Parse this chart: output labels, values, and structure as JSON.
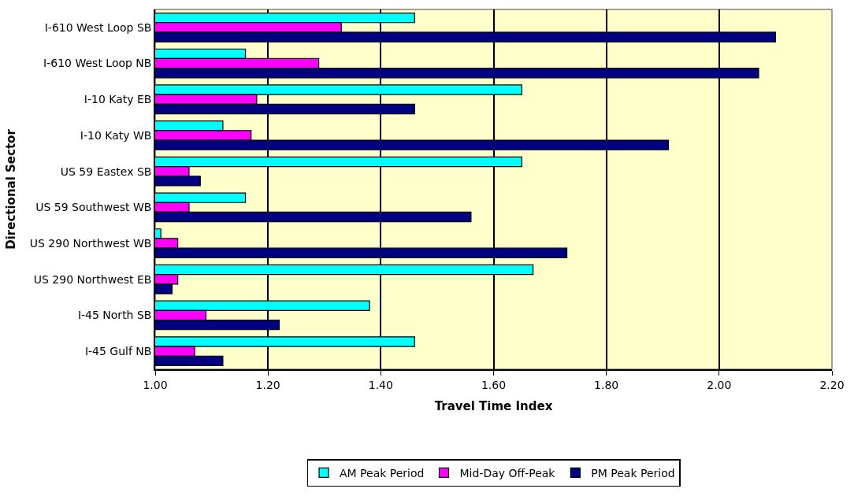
{
  "chart_data": {
    "type": "bar",
    "orientation": "horizontal",
    "xlabel": "Travel Time Index",
    "ylabel": "Directional Sector",
    "categories": [
      "I-610 West Loop SB",
      "I-610 West Loop NB",
      "I-10 Katy EB",
      "I-10 Katy WB",
      "US 59 Eastex SB",
      "US 59 Southwest WB",
      "US 290 Northwest WB",
      "US 290 Northwest EB",
      "I-45 North SB",
      "I-45 Gulf NB"
    ],
    "series": [
      {
        "name": "AM Peak Period",
        "color": "#00ffff",
        "values": [
          1.46,
          1.16,
          1.65,
          1.12,
          1.65,
          1.16,
          1.01,
          1.67,
          1.38,
          1.46
        ]
      },
      {
        "name": "Mid-Day Off-Peak",
        "color": "#ff00ff",
        "values": [
          1.33,
          1.29,
          1.18,
          1.17,
          1.06,
          1.06,
          1.04,
          1.04,
          1.09,
          1.07
        ]
      },
      {
        "name": "PM Peak Period",
        "color": "#000080",
        "values": [
          2.1,
          2.07,
          1.46,
          1.91,
          1.08,
          1.56,
          1.73,
          1.03,
          1.22,
          1.12
        ]
      }
    ],
    "xlim": [
      1.0,
      2.2
    ],
    "xticks": [
      {
        "value": 1.0,
        "label": "1.00"
      },
      {
        "value": 1.2,
        "label": "1.20"
      },
      {
        "value": 1.4,
        "label": "1.40"
      },
      {
        "value": 1.6,
        "label": "1.60"
      },
      {
        "value": 1.8,
        "label": "1.80"
      },
      {
        "value": 2.0,
        "label": "2.00"
      },
      {
        "value": 2.2,
        "label": "2.20"
      }
    ],
    "grid": "x",
    "legend": "bottom"
  }
}
